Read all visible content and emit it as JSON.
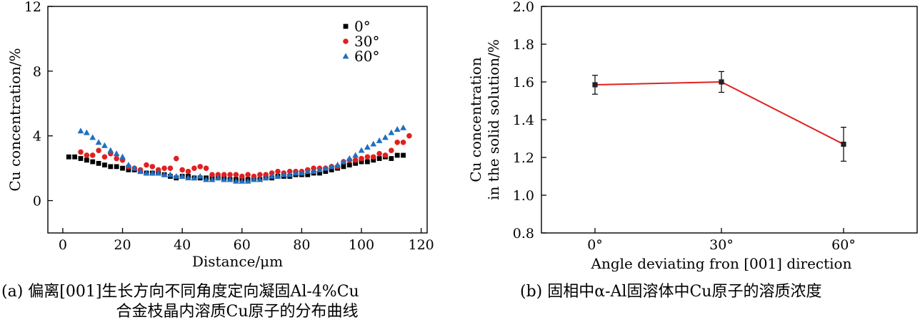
{
  "captions": {
    "a_line1": "(a) 偏离[001]生长方向不同角度定向凝固Al-4%Cu",
    "a_line2": "合金枝晶内溶质Cu原子的分布曲线",
    "b": "(b) 固相中α-Al固溶体中Cu原子的溶质浓度"
  },
  "chart_data": [
    {
      "type": "scatter",
      "title": "",
      "xlabel": "Distance/μm",
      "ylabel": "Cu concentration/%",
      "xlim": [
        -5,
        122
      ],
      "ylim": [
        -2,
        12
      ],
      "xticks": [
        0,
        20,
        40,
        60,
        80,
        100,
        120
      ],
      "yticks": [
        0,
        4,
        8,
        12
      ],
      "legend_position": "top-right",
      "grid": false,
      "series": [
        {
          "name": "0°",
          "marker": "square",
          "color": "#000000",
          "x": [
            2,
            4,
            6,
            8,
            10,
            12,
            14,
            16,
            18,
            20,
            22,
            24,
            26,
            28,
            30,
            32,
            34,
            36,
            38,
            40,
            42,
            44,
            46,
            48,
            50,
            52,
            54,
            56,
            58,
            60,
            62,
            64,
            66,
            68,
            70,
            72,
            74,
            76,
            78,
            80,
            82,
            84,
            86,
            88,
            90,
            92,
            94,
            96,
            98,
            100,
            102,
            104,
            106,
            108,
            110,
            112,
            114
          ],
          "y": [
            2.7,
            2.7,
            2.6,
            2.5,
            2.4,
            2.3,
            2.2,
            2.1,
            2.1,
            2.0,
            1.9,
            1.9,
            1.8,
            1.7,
            1.7,
            1.7,
            1.6,
            1.5,
            1.4,
            1.5,
            1.5,
            1.4,
            1.4,
            1.4,
            1.4,
            1.4,
            1.4,
            1.3,
            1.3,
            1.3,
            1.3,
            1.3,
            1.3,
            1.4,
            1.4,
            1.5,
            1.5,
            1.5,
            1.6,
            1.6,
            1.6,
            1.7,
            1.7,
            1.8,
            1.9,
            2.0,
            2.1,
            2.2,
            2.3,
            2.4,
            2.4,
            2.5,
            2.6,
            2.7,
            2.6,
            2.8,
            2.8
          ]
        },
        {
          "name": "30°",
          "marker": "circle",
          "color": "#e02020",
          "x": [
            6,
            8,
            10,
            12,
            14,
            16,
            18,
            20,
            22,
            24,
            26,
            28,
            30,
            32,
            34,
            36,
            38,
            40,
            42,
            44,
            46,
            48,
            50,
            52,
            54,
            56,
            58,
            60,
            62,
            64,
            66,
            68,
            70,
            72,
            74,
            76,
            78,
            80,
            82,
            84,
            86,
            88,
            90,
            92,
            94,
            96,
            98,
            100,
            102,
            104,
            106,
            108,
            110,
            112,
            114,
            116
          ],
          "y": [
            3.0,
            2.8,
            2.8,
            3.1,
            2.7,
            2.9,
            2.6,
            2.5,
            2.1,
            2.0,
            1.9,
            2.2,
            2.1,
            1.9,
            2.0,
            2.0,
            2.6,
            1.9,
            1.8,
            2.0,
            2.1,
            2.0,
            1.6,
            1.6,
            1.6,
            1.6,
            1.6,
            1.5,
            1.6,
            1.5,
            1.6,
            1.6,
            1.7,
            1.8,
            1.7,
            1.8,
            1.8,
            1.8,
            1.9,
            2.0,
            2.0,
            2.0,
            2.1,
            2.1,
            2.4,
            2.5,
            2.5,
            2.6,
            2.7,
            2.7,
            2.9,
            2.8,
            3.1,
            3.6,
            3.6,
            4.0
          ]
        },
        {
          "name": "60°",
          "marker": "triangle",
          "color": "#1f6fc0",
          "x": [
            6,
            8,
            10,
            12,
            14,
            16,
            18,
            20,
            22,
            24,
            26,
            28,
            30,
            32,
            34,
            36,
            38,
            40,
            42,
            44,
            46,
            48,
            50,
            52,
            54,
            56,
            58,
            60,
            62,
            64,
            66,
            68,
            70,
            72,
            74,
            76,
            78,
            80,
            82,
            84,
            86,
            88,
            90,
            92,
            94,
            96,
            98,
            100,
            102,
            104,
            106,
            108,
            110,
            112,
            114
          ],
          "y": [
            4.3,
            4.2,
            3.9,
            3.6,
            3.4,
            3.1,
            2.9,
            2.7,
            2.2,
            2.0,
            1.8,
            1.7,
            1.7,
            1.7,
            1.6,
            1.6,
            1.5,
            1.5,
            1.4,
            1.4,
            1.5,
            1.3,
            1.3,
            1.4,
            1.3,
            1.3,
            1.2,
            1.2,
            1.2,
            1.3,
            1.3,
            1.4,
            1.5,
            1.5,
            1.6,
            1.6,
            1.7,
            1.7,
            1.8,
            1.8,
            1.9,
            2.0,
            2.1,
            2.2,
            2.4,
            2.6,
            2.8,
            3.1,
            3.3,
            3.5,
            3.7,
            3.9,
            4.2,
            4.4,
            4.5
          ]
        }
      ]
    },
    {
      "type": "line",
      "title": "",
      "xlabel": "Angle deviating fron [001] direction",
      "ylabel_line1": "Cu concentration",
      "ylabel_line2": "in the solid solution/%",
      "categories": [
        "0°",
        "30°",
        "60°"
      ],
      "values": [
        1.585,
        1.6,
        1.27
      ],
      "errors": [
        0.05,
        0.055,
        0.09
      ],
      "ylim": [
        0.8,
        2.0
      ],
      "yticks": [
        "0.8",
        "1.0",
        "1.2",
        "1.4",
        "1.6",
        "1.8",
        "2.0"
      ],
      "line_color": "#e02020",
      "marker_color": "#222222",
      "grid": false
    }
  ]
}
